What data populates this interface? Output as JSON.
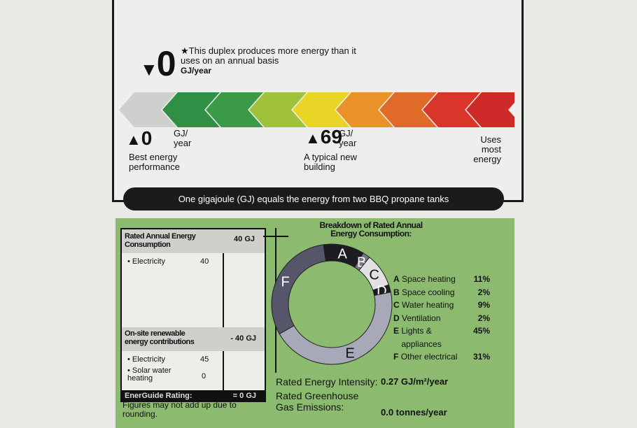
{
  "rating": {
    "value": "0",
    "note": "This duplex produces more energy than it uses on an annual basis",
    "unit": "GJ/year",
    "star": "★"
  },
  "scale": {
    "colors": [
      "#cfd0cd",
      "#2f8f45",
      "#3a9a48",
      "#9fc23a",
      "#e8d526",
      "#e9922a",
      "#e06a28",
      "#d9352a",
      "#cf2a2a"
    ],
    "best": {
      "value": "0",
      "unit": "GJ/ year",
      "label": "Best energy performance"
    },
    "typical": {
      "value": "69",
      "unit": "GJ/ year",
      "label": "A typical new building"
    },
    "worst": {
      "label": "Uses most energy"
    }
  },
  "footer_bar": "One gigajoule (GJ) equals the energy from two BBQ propane tanks",
  "table": {
    "consumption_title": "Rated Annual Energy Consumption",
    "consumption_total": "40 GJ",
    "consumption_items": [
      {
        "label": "Electricity",
        "value": "40"
      }
    ],
    "renewable_title": "On-site renewable energy contributions",
    "renewable_total": "- 40 GJ",
    "renewable_items": [
      {
        "label": "Electricity",
        "value": "45"
      },
      {
        "label": "Solar water heating",
        "value": "0"
      }
    ],
    "rating_label": "EnerGuide Rating:",
    "rating_value": "= 0 GJ",
    "footnote": "Figures may not add up due to rounding."
  },
  "breakdown": {
    "title": "Breakdown of Rated Annual Energy Consumption:",
    "items": [
      {
        "letter": "A",
        "label": "Space heating",
        "pct": "11%",
        "value": 11,
        "color": "#1c1c22"
      },
      {
        "letter": "B",
        "label": "Space cooling",
        "pct": "2%",
        "value": 2,
        "color": "#77777f"
      },
      {
        "letter": "C",
        "label": "Water heating",
        "pct": "9%",
        "value": 9,
        "color": "#e2e2e4"
      },
      {
        "letter": "D",
        "label": "Ventilation",
        "pct": "2%",
        "value": 2,
        "color": "#1c1c22"
      },
      {
        "letter": "E",
        "label": "Lights & appliances",
        "pct": "45%",
        "value": 45,
        "color": "#a7a9b8"
      },
      {
        "letter": "F",
        "label": "Other electrical",
        "pct": "31%",
        "value": 31,
        "color": "#55566a"
      }
    ]
  },
  "intensity": {
    "label": "Rated Energy Intensity:",
    "value": "0.27 GJ/m²/year"
  },
  "emissions": {
    "label": "Rated Greenhouse Gas Emissions:",
    "value": "0.0 tonnes/year"
  }
}
